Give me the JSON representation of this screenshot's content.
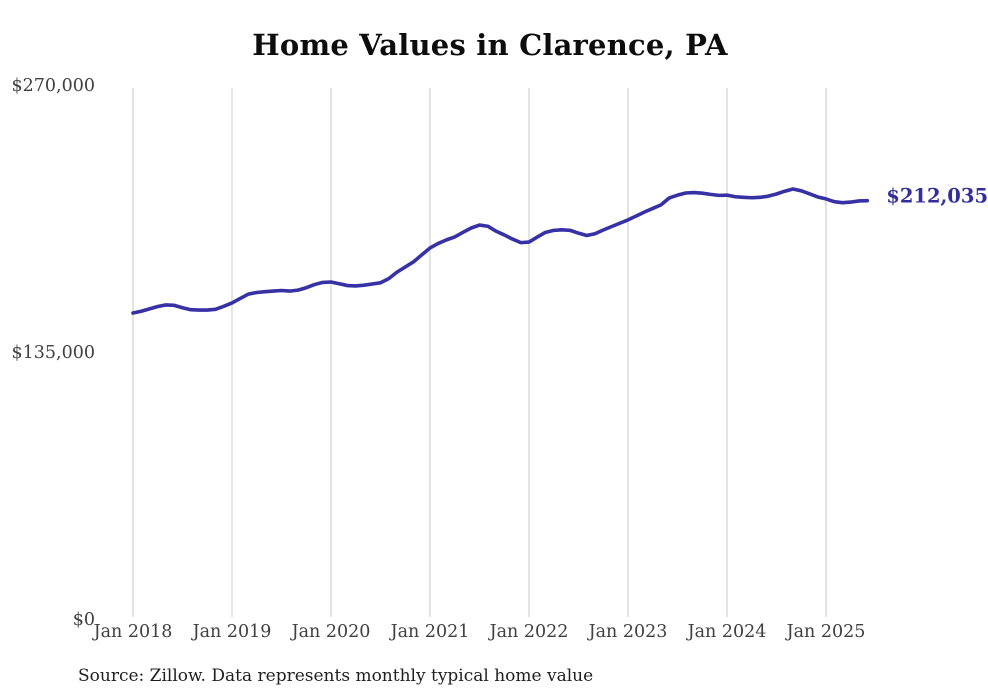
{
  "chart": {
    "title": "Home Values in Clarence, PA",
    "end_label": "$212,035",
    "source": "Source: Zillow. Data represents monthly typical home value",
    "colors": {
      "line": "#3631a5",
      "end_label": "#322e9b",
      "grid": "#c9c9c9",
      "axis_text": "#404040",
      "title_text": "#0d0d0d",
      "source_text": "#1f1f1f",
      "background": "#ffffff"
    }
  },
  "chart_data": {
    "type": "line",
    "title": "Home Values in Clarence, PA",
    "xlabel": "",
    "ylabel": "",
    "ylim": [
      0,
      270000
    ],
    "grid": "vertical-only",
    "legend": "none",
    "x_tick_labels": [
      "Jan 2018",
      "Jan 2019",
      "Jan 2020",
      "Jan 2021",
      "Jan 2022",
      "Jan 2023",
      "Jan 2024",
      "Jan 2025"
    ],
    "y_ticks": [
      {
        "label": "$270,000",
        "value": 270000
      },
      {
        "label": "$135,000",
        "value": 135000
      },
      {
        "label": "$0",
        "value": 0
      }
    ],
    "annotation": {
      "text": "$212,035",
      "attached_to": "last-point"
    },
    "latest_value": 212035,
    "cadence": "monthly",
    "series": [
      {
        "name": "Typical home value",
        "months": [
          "2018-01",
          "2018-02",
          "2018-03",
          "2018-04",
          "2018-05",
          "2018-06",
          "2018-07",
          "2018-08",
          "2018-09",
          "2018-10",
          "2018-11",
          "2018-12",
          "2019-01",
          "2019-02",
          "2019-03",
          "2019-04",
          "2019-05",
          "2019-06",
          "2019-07",
          "2019-08",
          "2019-09",
          "2019-10",
          "2019-11",
          "2019-12",
          "2020-01",
          "2020-02",
          "2020-03",
          "2020-04",
          "2020-05",
          "2020-06",
          "2020-07",
          "2020-08",
          "2020-09",
          "2020-10",
          "2020-11",
          "2020-12",
          "2021-01",
          "2021-02",
          "2021-03",
          "2021-04",
          "2021-05",
          "2021-06",
          "2021-07",
          "2021-08",
          "2021-09",
          "2021-10",
          "2021-11",
          "2021-12",
          "2022-01",
          "2022-02",
          "2022-03",
          "2022-04",
          "2022-05",
          "2022-06",
          "2022-07",
          "2022-08",
          "2022-09",
          "2022-10",
          "2022-11",
          "2022-12",
          "2023-01",
          "2023-02",
          "2023-03",
          "2023-04",
          "2023-05",
          "2023-06",
          "2023-07",
          "2023-08",
          "2023-09",
          "2023-10",
          "2023-11",
          "2023-12",
          "2024-01",
          "2024-02",
          "2024-03",
          "2024-04",
          "2024-05",
          "2024-06",
          "2024-07",
          "2024-08",
          "2024-09",
          "2024-10",
          "2024-11",
          "2024-12",
          "2025-01",
          "2025-02",
          "2025-03",
          "2025-04",
          "2025-05",
          "2025-06"
        ],
        "values": [
          155200,
          156100,
          157300,
          158500,
          159300,
          159100,
          157900,
          156900,
          156700,
          156700,
          157100,
          158600,
          160300,
          162600,
          164800,
          165600,
          166000,
          166300,
          166600,
          166300,
          166800,
          168000,
          169600,
          170700,
          170900,
          170000,
          169100,
          168900,
          169300,
          169900,
          170500,
          172600,
          175900,
          178500,
          181100,
          184600,
          188100,
          190400,
          192200,
          193700,
          196000,
          198200,
          199700,
          199100,
          196600,
          194700,
          192600,
          190800,
          191100,
          193600,
          196000,
          197000,
          197300,
          197000,
          195600,
          194400,
          195300,
          197200,
          198900,
          200600,
          202300,
          204300,
          206300,
          208100,
          209900,
          213400,
          214800,
          215900,
          216100,
          215800,
          215200,
          214700,
          214800,
          214000,
          213700,
          213500,
          213700,
          214300,
          215400,
          216800,
          217900,
          217000,
          215500,
          213900,
          212900,
          211500,
          211000,
          211300,
          211900,
          212035
        ]
      }
    ]
  }
}
